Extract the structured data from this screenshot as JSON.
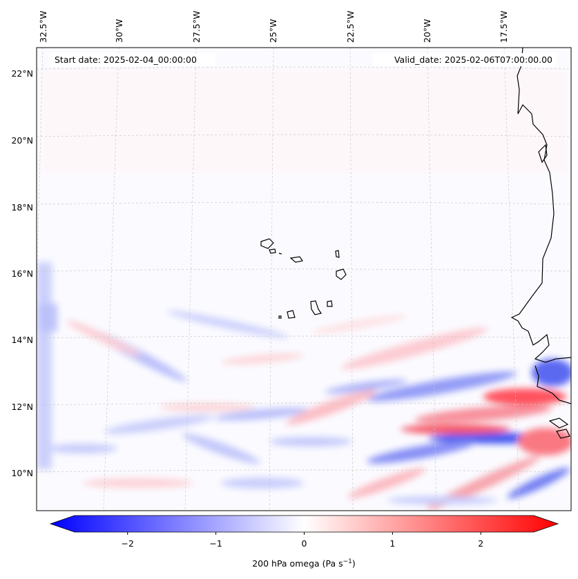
{
  "header": {
    "start_date": "Start date: 2025-02-04_00:00:00",
    "valid_date": "Valid_date: 2025-02-06T07:00:00.00"
  },
  "longitude_labels": [
    "32.5°W",
    "30°W",
    "27.5°W",
    "25°W",
    "22.5°W",
    "20°W",
    "17.5°W"
  ],
  "latitude_labels": [
    "22°N",
    "20°N",
    "18°N",
    "16°N",
    "14°N",
    "12°N",
    "10°N"
  ],
  "colorbar": {
    "label_main": "200 hPa omega (Pa s",
    "label_sup": "−1",
    "label_close": ")",
    "ticks": [
      "−2",
      "−1",
      "0",
      "1",
      "2"
    ],
    "range": [
      -2.6,
      2.6
    ],
    "tick_values": [
      -2,
      -1,
      0,
      1,
      2
    ],
    "colors": {
      "negative": "#0000ff",
      "zero": "#ffffff",
      "positive": "#ff0000"
    }
  },
  "colors": {
    "coastline": "#000000",
    "gridline": "#c8c8c8"
  }
}
